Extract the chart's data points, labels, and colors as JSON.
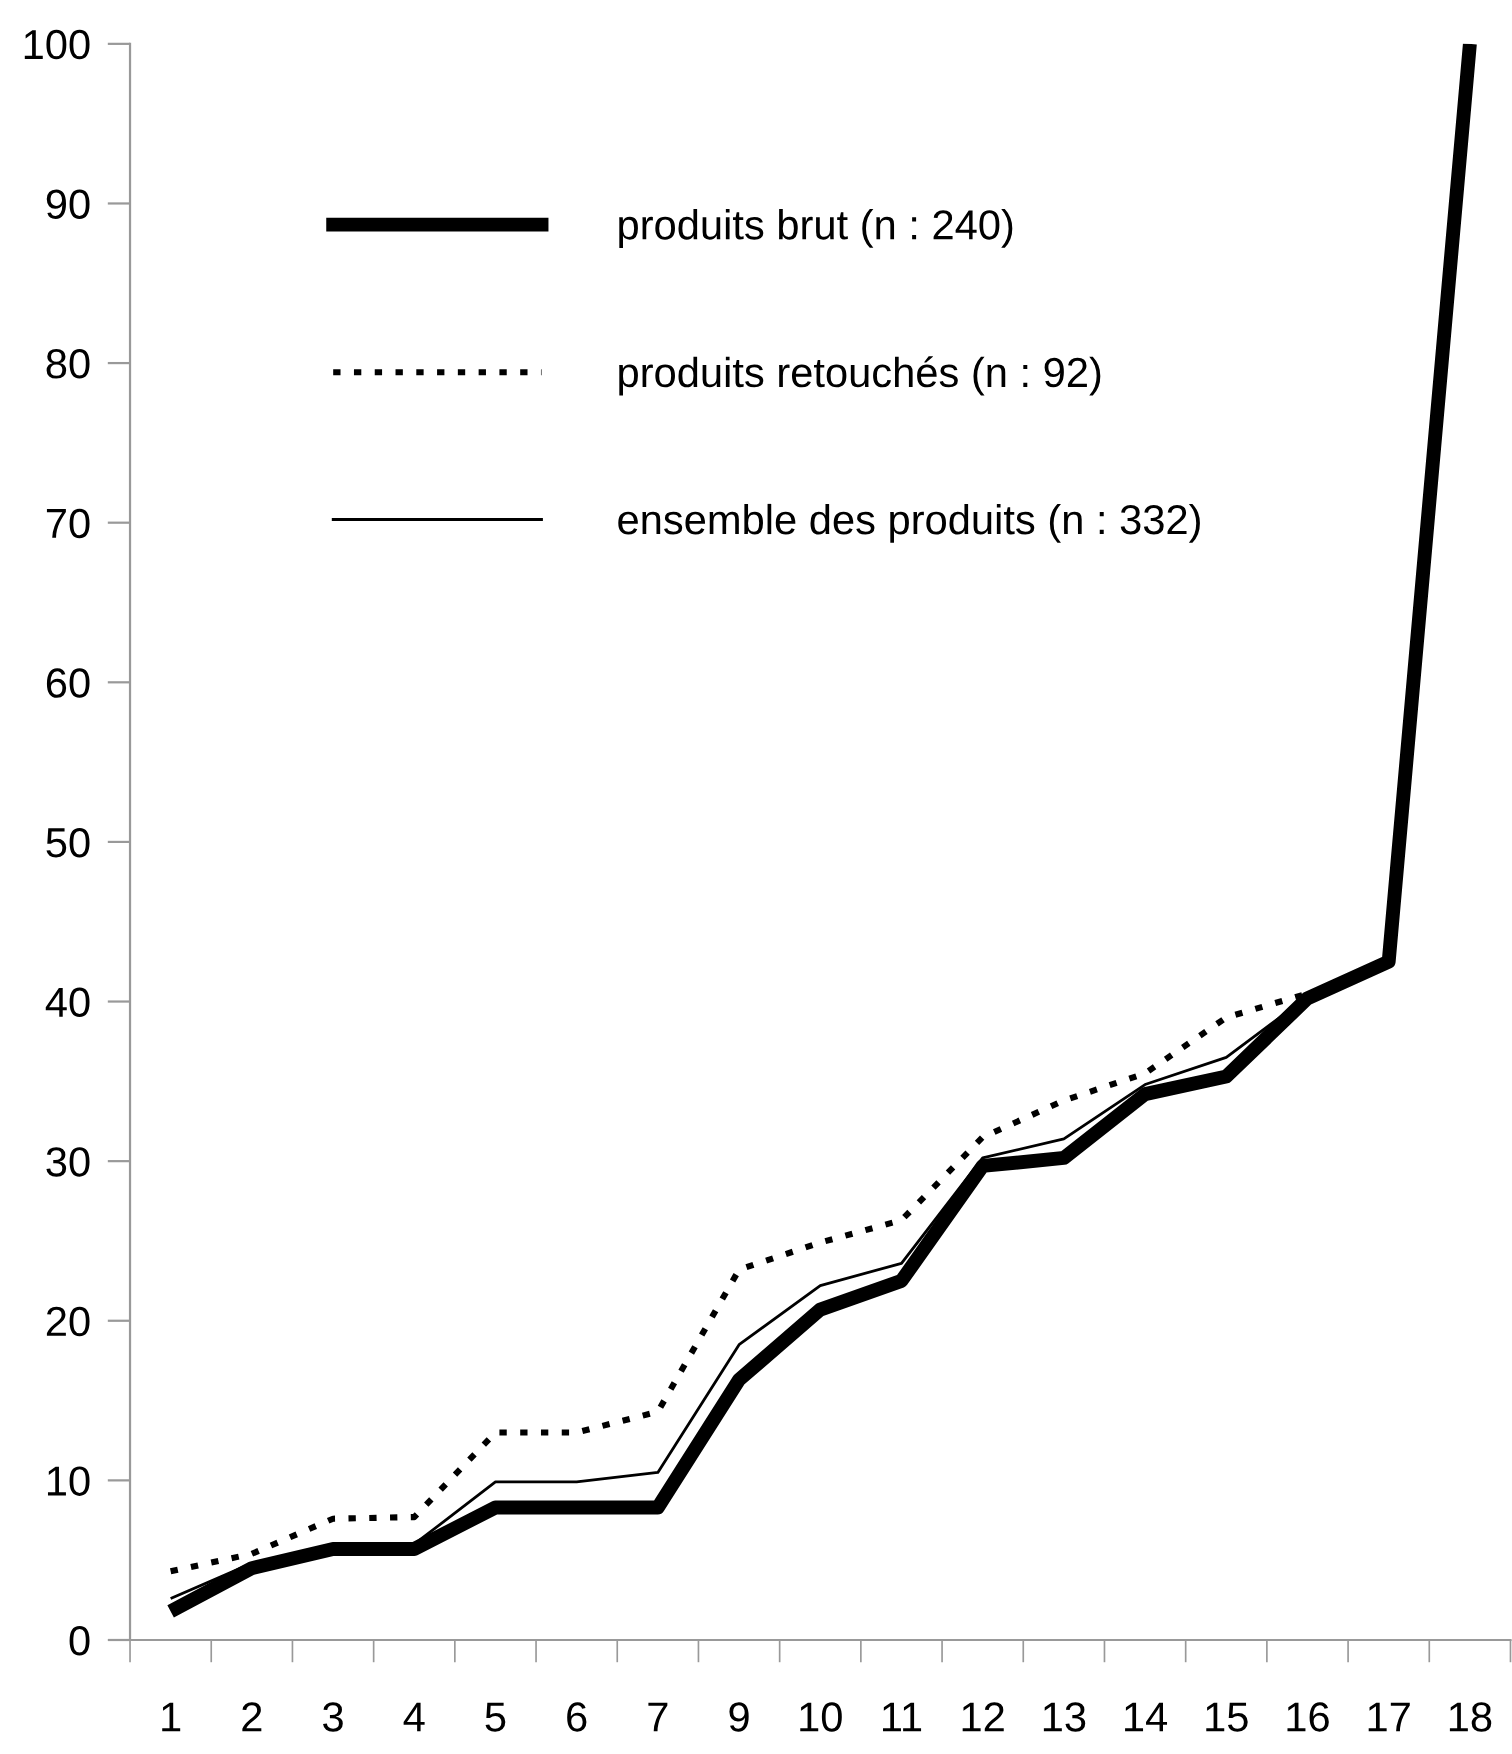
{
  "chart_data": {
    "type": "line",
    "categories": [
      "1",
      "2",
      "3",
      "4",
      "5",
      "6",
      "7",
      "9",
      "10",
      "11",
      "12",
      "13",
      "14",
      "15",
      "16",
      "17",
      "18"
    ],
    "series": [
      {
        "name": "produits brut (n : 240)",
        "color": "#000000",
        "line_style": "solid",
        "values": [
          1.8,
          4.5,
          5.7,
          5.7,
          8.3,
          8.3,
          8.3,
          16.3,
          20.7,
          22.5,
          29.7,
          30.2,
          34.2,
          35.3,
          40.2,
          42.5,
          100
        ]
      },
      {
        "name": "produits retouchés (n : 92)",
        "color": "#000000",
        "line_style": "dotted",
        "values": [
          4.3,
          5.4,
          7.6,
          7.7,
          13,
          13,
          14.3,
          23.2,
          24.9,
          26.3,
          31.5,
          33.8,
          35.5,
          39,
          40.5,
          null,
          null
        ]
      },
      {
        "name": "ensemble des produits (n : 332)",
        "color": "#000000",
        "line_style": "solid",
        "values": [
          2.6,
          4.8,
          6.0,
          6.0,
          9.9,
          9.9,
          10.5,
          18.5,
          22.2,
          23.6,
          30.2,
          31.4,
          34.8,
          36.5,
          40.3,
          null,
          null
        ]
      }
    ],
    "ylim": [
      0,
      100
    ],
    "yticks": [
      0,
      10,
      20,
      30,
      40,
      50,
      60,
      70,
      80,
      90,
      100
    ],
    "grid": false,
    "legend": "top left",
    "marker": "none"
  }
}
